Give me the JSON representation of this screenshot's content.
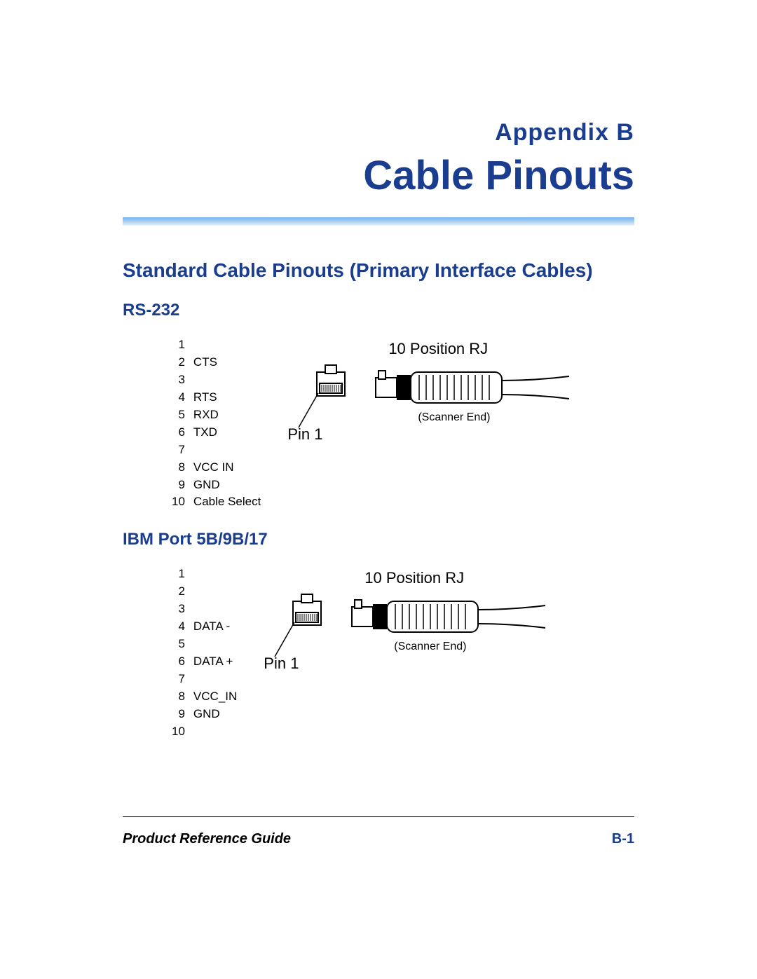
{
  "colors": {
    "heading": "#1a3d8f",
    "body": "#000000",
    "rule_top": "#7fb8f0"
  },
  "appendix_label": {
    "text": "Appendix  B",
    "fontsize": 34
  },
  "main_title": {
    "text": "Cable Pinouts",
    "fontsize": 58
  },
  "section_heading": {
    "text": "Standard Cable Pinouts (Primary Interface Cables)",
    "fontsize": 28
  },
  "rs232": {
    "heading": {
      "text": "RS-232",
      "fontsize": 24
    },
    "pins": [
      {
        "n": "1",
        "label": ""
      },
      {
        "n": "2",
        "label": "CTS"
      },
      {
        "n": "3",
        "label": ""
      },
      {
        "n": "4",
        "label": "RTS"
      },
      {
        "n": "5",
        "label": "RXD"
      },
      {
        "n": "6",
        "label": "TXD"
      },
      {
        "n": "7",
        "label": ""
      },
      {
        "n": "8",
        "label": "VCC IN"
      },
      {
        "n": "9",
        "label": "GND"
      },
      {
        "n": "10",
        "label": "Cable Select"
      }
    ],
    "diagram": {
      "position_label": "10 Position RJ",
      "pin1_label": "Pin 1",
      "scanner_end_label": "(Scanner End)"
    }
  },
  "ibm": {
    "heading": {
      "text": "IBM Port 5B/9B/17",
      "fontsize": 24
    },
    "pins": [
      {
        "n": "1",
        "label": ""
      },
      {
        "n": "2",
        "label": ""
      },
      {
        "n": "3",
        "label": ""
      },
      {
        "n": "4",
        "label": "DATA -"
      },
      {
        "n": "5",
        "label": ""
      },
      {
        "n": "6",
        "label": "DATA +"
      },
      {
        "n": "7",
        "label": ""
      },
      {
        "n": "8",
        "label": "VCC_IN"
      },
      {
        "n": "9",
        "label": "GND"
      },
      {
        "n": "10",
        "label": ""
      }
    ],
    "diagram": {
      "position_label": "10 Position RJ",
      "pin1_label": "Pin 1",
      "scanner_end_label": "(Scanner End)"
    }
  },
  "footer": {
    "left": "Product Reference Guide",
    "right": "B-1",
    "right_color": "#1a3d8f"
  }
}
